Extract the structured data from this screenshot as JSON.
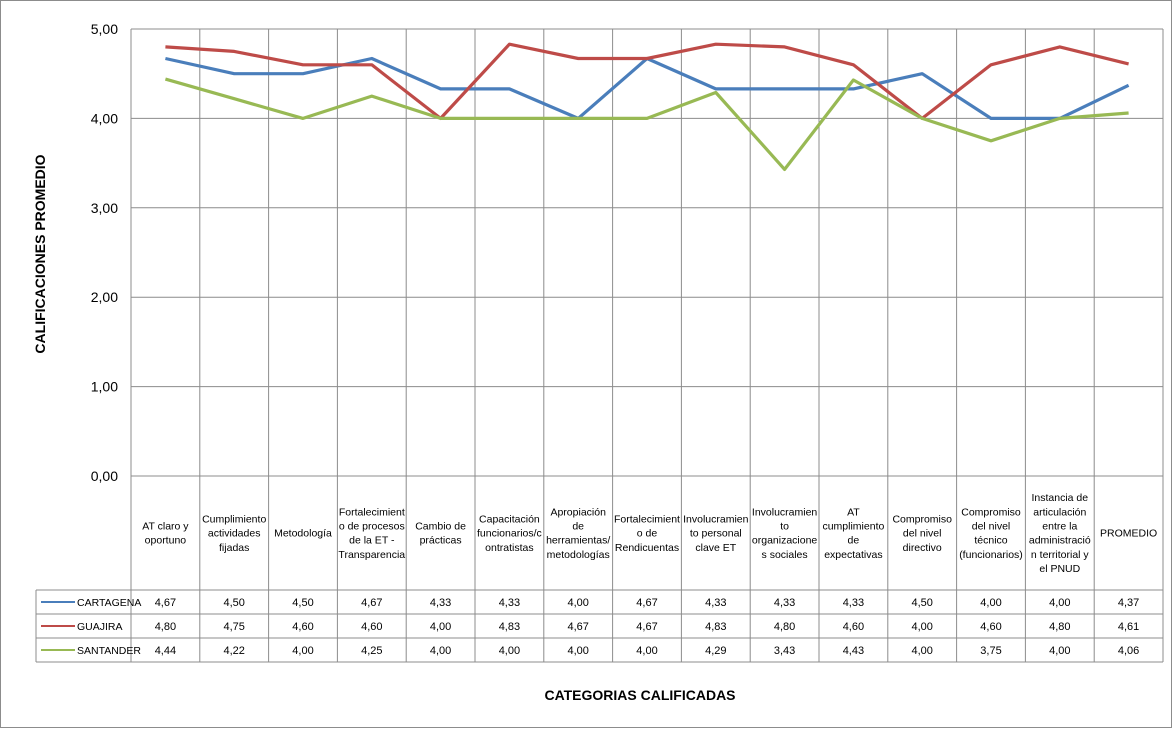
{
  "chart_data": {
    "type": "line",
    "xlabel": "CATEGORIAS CALIFICADAS",
    "ylabel": "CALIFICACIONES PROMEDIO",
    "ylim": [
      0,
      5
    ],
    "yticks": [
      "0,00",
      "1,00",
      "2,00",
      "3,00",
      "4,00",
      "5,00"
    ],
    "grid": true,
    "legend": "data-table",
    "categories": [
      [
        "AT claro y",
        "oportuno"
      ],
      [
        "Cumplimiento",
        "actividades",
        "fijadas"
      ],
      [
        "Metodología"
      ],
      [
        "Fortalecimient",
        "o de procesos",
        "de la ET -",
        "Transparencia"
      ],
      [
        "Cambio de",
        "prácticas"
      ],
      [
        "Capacitación",
        "funcionarios/c",
        "ontratistas"
      ],
      [
        "Apropiación",
        "de",
        "herramientas/",
        "metodologías"
      ],
      [
        "Fortalecimient",
        "o de",
        "Rendicuentas"
      ],
      [
        "Involucramien",
        "to personal",
        "clave ET"
      ],
      [
        "Involucramien",
        "to",
        "organizacione",
        "s sociales"
      ],
      [
        "AT",
        "cumplimiento",
        "de",
        "expectativas"
      ],
      [
        "Compromiso",
        "del nivel",
        "directivo"
      ],
      [
        "Compromiso",
        "del nivel",
        "técnico",
        "(funcionarios)"
      ],
      [
        "Instancia de",
        "articulación",
        "entre la",
        "administració",
        "n territorial y",
        "el PNUD"
      ],
      [
        "PROMEDIO"
      ]
    ],
    "series": [
      {
        "name": "CARTAGENA",
        "color": "#4a7ebb",
        "values": [
          4.67,
          4.5,
          4.5,
          4.67,
          4.33,
          4.33,
          4.0,
          4.67,
          4.33,
          4.33,
          4.33,
          4.5,
          4.0,
          4.0,
          4.37
        ],
        "labels": [
          "4,67",
          "4,50",
          "4,50",
          "4,67",
          "4,33",
          "4,33",
          "4,00",
          "4,67",
          "4,33",
          "4,33",
          "4,33",
          "4,50",
          "4,00",
          "4,00",
          "4,37"
        ]
      },
      {
        "name": "GUAJIRA",
        "color": "#be4b48",
        "values": [
          4.8,
          4.75,
          4.6,
          4.6,
          4.0,
          4.83,
          4.67,
          4.67,
          4.83,
          4.8,
          4.6,
          4.0,
          4.6,
          4.8,
          4.61
        ],
        "labels": [
          "4,80",
          "4,75",
          "4,60",
          "4,60",
          "4,00",
          "4,83",
          "4,67",
          "4,67",
          "4,83",
          "4,80",
          "4,60",
          "4,00",
          "4,60",
          "4,80",
          "4,61"
        ]
      },
      {
        "name": "SANTANDER",
        "color": "#98b954",
        "values": [
          4.44,
          4.22,
          4.0,
          4.25,
          4.0,
          4.0,
          4.0,
          4.0,
          4.29,
          3.43,
          4.43,
          4.0,
          3.75,
          4.0,
          4.06
        ],
        "labels": [
          "4,44",
          "4,22",
          "4,00",
          "4,25",
          "4,00",
          "4,00",
          "4,00",
          "4,00",
          "4,29",
          "3,43",
          "4,43",
          "4,00",
          "3,75",
          "4,00",
          "4,06"
        ]
      }
    ]
  }
}
